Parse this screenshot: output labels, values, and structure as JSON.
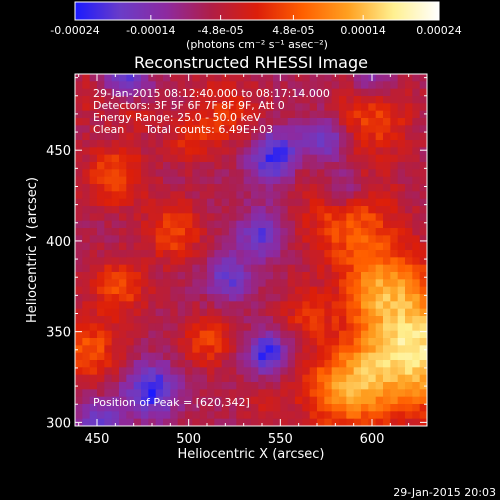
{
  "colorbar": {
    "ticks": [
      "-0.00024",
      "-0.00014",
      "-4.8e-05",
      "4.8e-05",
      "0.00014",
      "0.00024"
    ],
    "tick_values": [
      -0.00024,
      -0.00014,
      -4.8e-05,
      4.8e-05,
      0.00014,
      0.00024
    ],
    "range": [
      -0.00024,
      0.00024
    ],
    "units": "(photons cm⁻² s⁻¹ asec⁻²)",
    "colors": [
      "#1a1aff",
      "#6a3cc8",
      "#8d2aa0",
      "#b01e46",
      "#dc1e0a",
      "#ff5f00",
      "#ffa020",
      "#fff090",
      "#ffffff"
    ]
  },
  "chart": {
    "title": "Reconstructed RHESSI Image",
    "annotations": [
      "29-Jan-2015 08:12:40.000 to 08:17:14.000",
      "Detectors: 3F 5F 6F 7F 8F 9F, Att 0",
      "Energy Range: 25.0 - 50.0 keV",
      "Clean      Total counts: 6.49E+03"
    ],
    "peak_label": "Position of Peak = [620,342]",
    "footer_timestamp": "29-Jan-2015 20:03"
  },
  "chart_data": {
    "type": "heatmap",
    "title": "Reconstructed RHESSI Image",
    "xlabel": "Heliocentric X (arcsec)",
    "ylabel": "Heliocentric Y (arcsec)",
    "xlim": [
      438,
      630
    ],
    "ylim": [
      298,
      492
    ],
    "x_ticks": [
      450,
      500,
      550,
      600
    ],
    "y_ticks": [
      300,
      350,
      400,
      450
    ],
    "peak_position": [
      620,
      342
    ],
    "grid_size": [
      48,
      48
    ],
    "blobs": [
      {
        "x": 623,
        "y": 338,
        "sigma": 22,
        "amp": 0.000245
      },
      {
        "x": 585,
        "y": 318,
        "sigma": 16,
        "amp": 0.000165
      },
      {
        "x": 610,
        "y": 375,
        "sigma": 16,
        "amp": 0.00013
      },
      {
        "x": 588,
        "y": 410,
        "sigma": 18,
        "amp": 0.00012
      },
      {
        "x": 565,
        "y": 360,
        "sigma": 10,
        "amp": 8e-05
      },
      {
        "x": 600,
        "y": 468,
        "sigma": 15,
        "amp": 0.0001
      },
      {
        "x": 520,
        "y": 470,
        "sigma": 14,
        "amp": 8e-05
      },
      {
        "x": 460,
        "y": 436,
        "sigma": 12,
        "amp": 0.00011
      },
      {
        "x": 500,
        "y": 455,
        "sigma": 9,
        "amp": 6e-05
      },
      {
        "x": 492,
        "y": 405,
        "sigma": 11,
        "amp": 0.00011
      },
      {
        "x": 462,
        "y": 375,
        "sigma": 11,
        "amp": 0.00011
      },
      {
        "x": 445,
        "y": 340,
        "sigma": 12,
        "amp": 0.00012
      },
      {
        "x": 510,
        "y": 345,
        "sigma": 10,
        "amp": 0.0001
      },
      {
        "x": 560,
        "y": 440,
        "sigma": 8,
        "amp": 5e-05
      },
      {
        "x": 445,
        "y": 480,
        "sigma": 10,
        "amp": 5e-05
      },
      {
        "x": 595,
        "y": 370,
        "sigma": 8,
        "amp": 5e-05
      },
      {
        "x": 540,
        "y": 310,
        "sigma": 9,
        "amp": 4e-05
      },
      {
        "x": 470,
        "y": 470,
        "sigma": 8,
        "amp": 5e-05
      }
    ],
    "negative_regions": [
      {
        "x": 548,
        "y": 446,
        "sigma": 10,
        "amp": -0.00017
      },
      {
        "x": 575,
        "y": 455,
        "sigma": 9,
        "amp": -0.00012
      },
      {
        "x": 540,
        "y": 404,
        "sigma": 9,
        "amp": -0.00012
      },
      {
        "x": 480,
        "y": 318,
        "sigma": 10,
        "amp": -0.00016
      },
      {
        "x": 543,
        "y": 338,
        "sigma": 8,
        "amp": -0.00016
      },
      {
        "x": 585,
        "y": 428,
        "sigma": 8,
        "amp": -0.0001
      },
      {
        "x": 465,
        "y": 490,
        "sigma": 9,
        "amp": -0.00012
      },
      {
        "x": 600,
        "y": 490,
        "sigma": 8,
        "amp": -0.0001
      },
      {
        "x": 522,
        "y": 380,
        "sigma": 9,
        "amp": -0.00011
      },
      {
        "x": 452,
        "y": 300,
        "sigma": 9,
        "amp": -0.00011
      }
    ]
  }
}
